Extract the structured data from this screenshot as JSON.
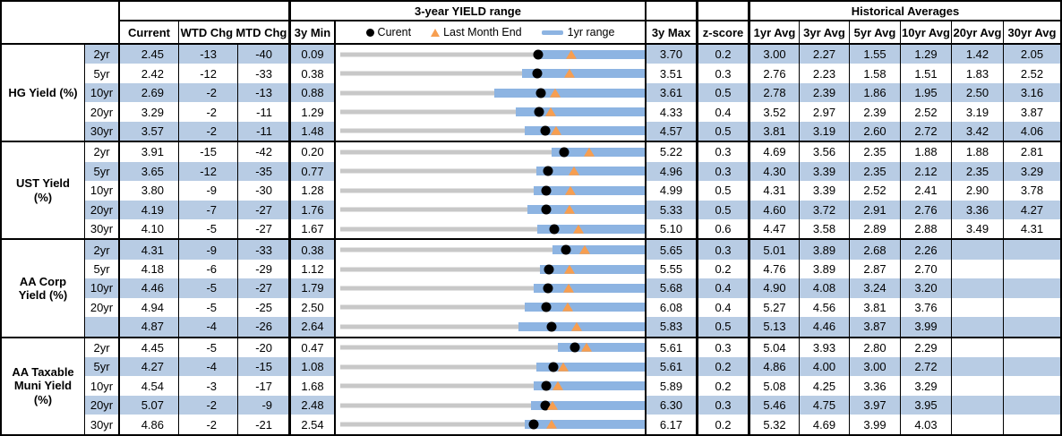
{
  "header": {
    "range_title": "3-year YIELD range",
    "hist_title": "Historical Averages",
    "col_current": "Current",
    "col_wtd": "WTD Chg",
    "col_mtd": "MTD Chg",
    "col_min": "3y Min",
    "col_max": "3y Max",
    "col_zscore": "z-score",
    "avg_cols": [
      "1yr Avg",
      "3yr Avg",
      "5yr Avg",
      "10yr Avg",
      "20yr Avg",
      "30yr Avg"
    ],
    "legend": {
      "current_label": "Curent",
      "last_month_label": "Last Month End",
      "range_label": "1yr range"
    }
  },
  "colors": {
    "stripe": "#B8CCE4",
    "range_bar_1yr": "#8DB4E2",
    "baseline_3yr": "#C8C8C8",
    "marker_current": "#000000",
    "marker_last_month": "#F79E50",
    "border": "#000000"
  },
  "chart_data": {
    "type": "range-dot-plot",
    "row_axis": "each row spans its own 3y Min to 3y Max",
    "legend": [
      "Curent (black dot)",
      "Last Month End (orange triangle)",
      "1yr range (blue bar)"
    ],
    "groups": [
      {
        "label": "HG Yield (%)",
        "rows": [
          {
            "tenor": "2yr",
            "current": "2.45",
            "wtd": "-13",
            "mtd": "-40",
            "min3y": "0.09",
            "max3y": "3.70",
            "zscore": "0.2",
            "range1y": [
              2.44,
              3.7
            ],
            "avgs": [
              "3.00",
              "2.27",
              "1.55",
              "1.29",
              "1.42",
              "2.05"
            ]
          },
          {
            "tenor": "5yr",
            "current": "2.42",
            "wtd": "-12",
            "mtd": "-33",
            "min3y": "0.38",
            "max3y": "3.51",
            "zscore": "0.3",
            "range1y": [
              2.26,
              3.51
            ],
            "avgs": [
              "2.76",
              "2.23",
              "1.58",
              "1.51",
              "1.83",
              "2.52"
            ]
          },
          {
            "tenor": "10yr",
            "current": "2.69",
            "wtd": "-2",
            "mtd": "-13",
            "min3y": "0.88",
            "max3y": "3.61",
            "zscore": "0.5",
            "range1y": [
              2.27,
              3.61
            ],
            "avgs": [
              "2.78",
              "2.39",
              "1.86",
              "1.95",
              "2.50",
              "3.16"
            ]
          },
          {
            "tenor": "20yr",
            "current": "3.29",
            "wtd": "-2",
            "mtd": "-11",
            "min3y": "1.29",
            "max3y": "4.33",
            "zscore": "0.4",
            "range1y": [
              3.05,
              4.33
            ],
            "avgs": [
              "3.52",
              "2.97",
              "2.39",
              "2.52",
              "3.19",
              "3.87"
            ]
          },
          {
            "tenor": "30yr",
            "current": "3.57",
            "wtd": "-2",
            "mtd": "-11",
            "min3y": "1.48",
            "max3y": "4.57",
            "zscore": "0.5",
            "range1y": [
              3.36,
              4.57
            ],
            "avgs": [
              "3.81",
              "3.19",
              "2.60",
              "2.72",
              "3.42",
              "4.06"
            ]
          }
        ]
      },
      {
        "label": "UST Yield (%)",
        "rows": [
          {
            "tenor": "2yr",
            "current": "3.91",
            "wtd": "-15",
            "mtd": "-42",
            "min3y": "0.20",
            "max3y": "5.22",
            "zscore": "0.3",
            "range1y": [
              3.71,
              5.22
            ],
            "avgs": [
              "4.69",
              "3.56",
              "2.35",
              "1.88",
              "1.88",
              "2.81"
            ]
          },
          {
            "tenor": "5yr",
            "current": "3.65",
            "wtd": "-12",
            "mtd": "-35",
            "min3y": "0.77",
            "max3y": "4.96",
            "zscore": "0.3",
            "range1y": [
              3.49,
              4.96
            ],
            "avgs": [
              "4.30",
              "3.39",
              "2.35",
              "2.12",
              "2.35",
              "3.29"
            ]
          },
          {
            "tenor": "10yr",
            "current": "3.80",
            "wtd": "-9",
            "mtd": "-30",
            "min3y": "1.28",
            "max3y": "4.99",
            "zscore": "0.5",
            "range1y": [
              3.65,
              4.99
            ],
            "avgs": [
              "4.31",
              "3.39",
              "2.52",
              "2.41",
              "2.90",
              "3.78"
            ]
          },
          {
            "tenor": "20yr",
            "current": "4.19",
            "wtd": "-7",
            "mtd": "-27",
            "min3y": "1.76",
            "max3y": "5.33",
            "zscore": "0.5",
            "range1y": [
              3.97,
              5.33
            ],
            "avgs": [
              "4.60",
              "3.72",
              "2.91",
              "2.76",
              "3.36",
              "4.27"
            ]
          },
          {
            "tenor": "30yr",
            "current": "4.10",
            "wtd": "-5",
            "mtd": "-27",
            "min3y": "1.67",
            "max3y": "5.10",
            "zscore": "0.6",
            "range1y": [
              3.9,
              5.1
            ],
            "avgs": [
              "4.47",
              "3.58",
              "2.89",
              "2.88",
              "3.49",
              "4.31"
            ]
          }
        ]
      },
      {
        "label": "AA Corp Yield (%)",
        "rows": [
          {
            "tenor": "2yr",
            "current": "4.31",
            "wtd": "-9",
            "mtd": "-33",
            "min3y": "0.38",
            "max3y": "5.65",
            "zscore": "0.3",
            "range1y": [
              4.07,
              5.65
            ],
            "avgs": [
              "5.01",
              "3.89",
              "2.68",
              "2.26",
              "",
              ""
            ]
          },
          {
            "tenor": "5yr",
            "current": "4.18",
            "wtd": "-6",
            "mtd": "-29",
            "min3y": "1.12",
            "max3y": "5.55",
            "zscore": "0.2",
            "range1y": [
              4.04,
              5.55
            ],
            "avgs": [
              "4.76",
              "3.89",
              "2.87",
              "2.70",
              "",
              ""
            ]
          },
          {
            "tenor": "10yr",
            "current": "4.46",
            "wtd": "-5",
            "mtd": "-27",
            "min3y": "1.79",
            "max3y": "5.68",
            "zscore": "0.4",
            "range1y": [
              4.28,
              5.68
            ],
            "avgs": [
              "4.90",
              "4.08",
              "3.24",
              "3.20",
              "",
              ""
            ]
          },
          {
            "tenor": "20yr",
            "current": "4.94",
            "wtd": "-5",
            "mtd": "-25",
            "min3y": "2.50",
            "max3y": "6.08",
            "zscore": "0.4",
            "range1y": [
              4.68,
              6.08
            ],
            "avgs": [
              "5.27",
              "4.56",
              "3.81",
              "3.76",
              "",
              ""
            ]
          },
          {
            "tenor": "",
            "current": "4.87",
            "wtd": "-4",
            "mtd": "-26",
            "min3y": "2.64",
            "max3y": "5.83",
            "zscore": "0.5",
            "range1y": [
              4.52,
              5.83
            ],
            "avgs": [
              "5.13",
              "4.46",
              "3.87",
              "3.99",
              "",
              ""
            ]
          }
        ]
      },
      {
        "label": "AA Taxable Muni Yield (%)",
        "rows": [
          {
            "tenor": "2yr",
            "current": "4.45",
            "wtd": "-5",
            "mtd": "-20",
            "min3y": "0.47",
            "max3y": "5.61",
            "zscore": "0.3",
            "range1y": [
              4.17,
              5.61
            ],
            "avgs": [
              "5.04",
              "3.93",
              "2.80",
              "2.29",
              "",
              ""
            ]
          },
          {
            "tenor": "5yr",
            "current": "4.27",
            "wtd": "-4",
            "mtd": "-15",
            "min3y": "1.08",
            "max3y": "5.61",
            "zscore": "0.2",
            "range1y": [
              4.02,
              5.61
            ],
            "avgs": [
              "4.86",
              "4.00",
              "3.00",
              "2.72",
              "",
              ""
            ]
          },
          {
            "tenor": "10yr",
            "current": "4.54",
            "wtd": "-3",
            "mtd": "-17",
            "min3y": "1.68",
            "max3y": "5.89",
            "zscore": "0.2",
            "range1y": [
              4.37,
              5.89
            ],
            "avgs": [
              "5.08",
              "4.25",
              "3.36",
              "3.29",
              "",
              ""
            ]
          },
          {
            "tenor": "20yr",
            "current": "5.07",
            "wtd": "-2",
            "mtd": "-9",
            "min3y": "2.48",
            "max3y": "6.30",
            "zscore": "0.3",
            "range1y": [
              4.89,
              6.3
            ],
            "avgs": [
              "5.46",
              "4.75",
              "3.97",
              "3.95",
              "",
              ""
            ]
          },
          {
            "tenor": "30yr",
            "current": "4.86",
            "wtd": "-2",
            "mtd": "-21",
            "min3y": "2.54",
            "max3y": "6.17",
            "zscore": "0.2",
            "range1y": [
              4.75,
              6.17
            ],
            "avgs": [
              "5.32",
              "4.69",
              "3.99",
              "4.03",
              "",
              ""
            ]
          }
        ]
      }
    ]
  }
}
